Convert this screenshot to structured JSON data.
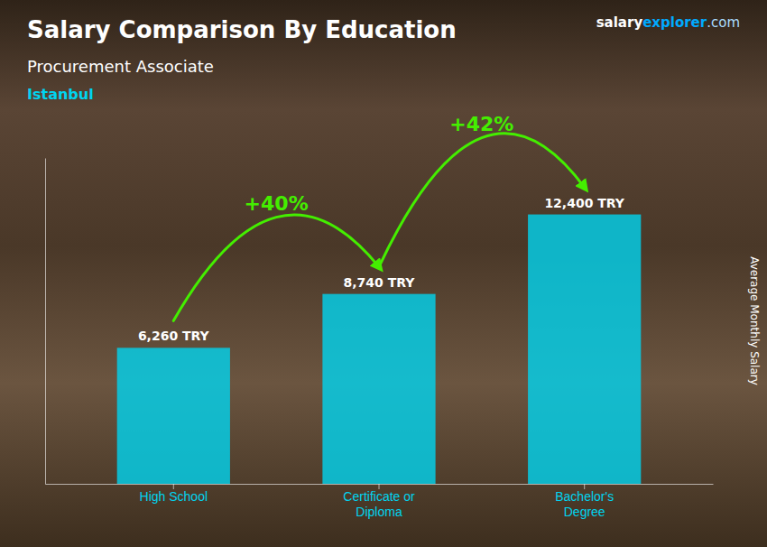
{
  "chart_data": {
    "type": "bar",
    "title": "Salary Comparison By Education",
    "subtitle": "Procurement Associate",
    "ylabel": "Average Monthly Salary",
    "categories": [
      "High School",
      "Certificate or\nDiploma",
      "Bachelor's\nDegree"
    ],
    "values": [
      6260,
      8740,
      12400
    ],
    "value_labels": [
      "6,260 TRY",
      "8,740 TRY",
      "12,400 TRY"
    ],
    "data_labels": true,
    "color": "#00d4f0",
    "ylim": [
      0,
      15000
    ],
    "yticks": [],
    "grid": false,
    "tick_labels": "x",
    "annotations": [
      {
        "text": "Istanbul",
        "color": "#00d4f0"
      },
      {
        "text": "salary",
        "color": "#ffffff"
      },
      {
        "text": "explorer",
        "color": "#00aaff"
      },
      {
        "text": ".com",
        "color": "#aaddff"
      },
      {
        "text": "+40%",
        "color": "#44ee00"
      },
      {
        "text": "+42%",
        "color": "#44ee00"
      }
    ]
  }
}
